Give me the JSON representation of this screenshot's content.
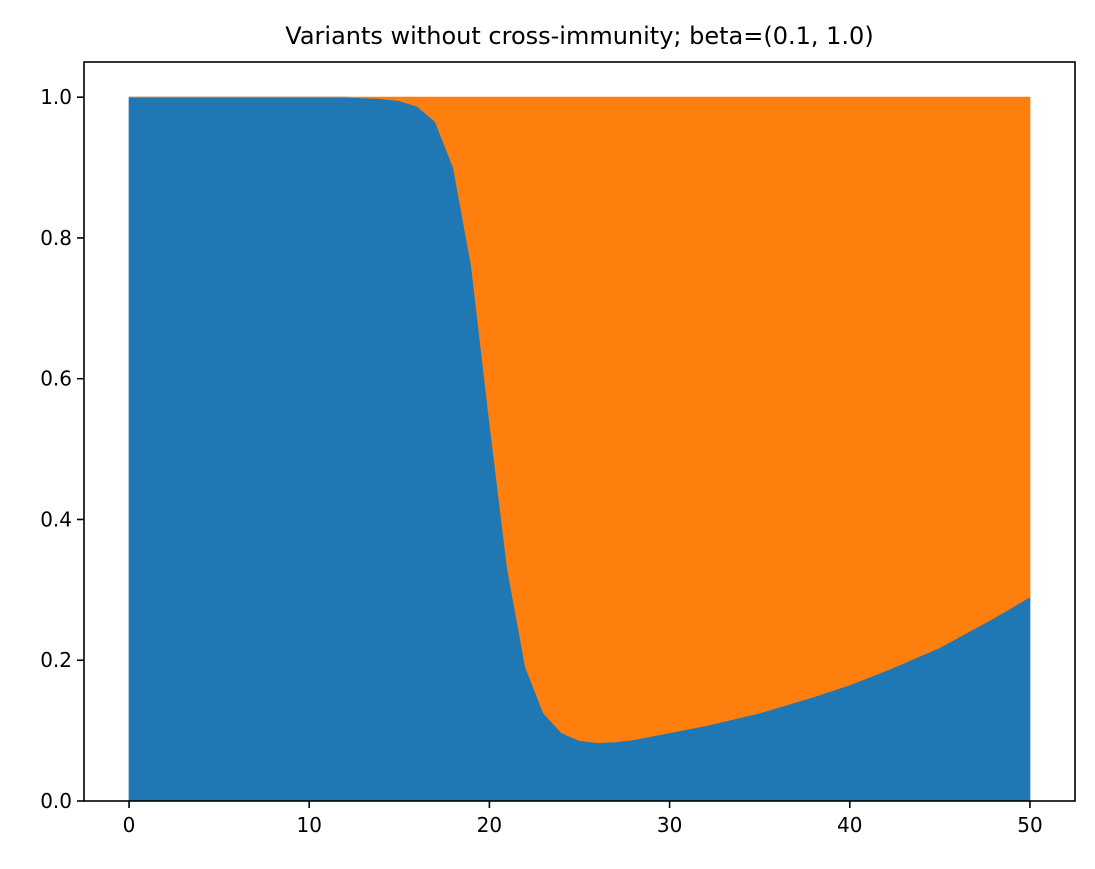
{
  "chart_data": {
    "type": "area",
    "stacked": true,
    "normalized": true,
    "title": "Variants without cross-immunity; beta=(0.1, 1.0)",
    "xlabel": "",
    "ylabel": "",
    "xlim": [
      -2.5,
      52.5
    ],
    "ylim": [
      0.0,
      1.05
    ],
    "xticks": [
      0,
      10,
      20,
      30,
      40,
      50
    ],
    "xtick_labels": [
      "0",
      "10",
      "20",
      "30",
      "40",
      "50"
    ],
    "yticks": [
      0.0,
      0.2,
      0.4,
      0.6,
      0.8,
      1.0
    ],
    "ytick_labels": [
      "0.0",
      "0.2",
      "0.4",
      "0.6",
      "0.8",
      "1.0"
    ],
    "grid": false,
    "legend": "none",
    "x": [
      0,
      5,
      10,
      12,
      14,
      15,
      16,
      17,
      18,
      19,
      20,
      21,
      22,
      23,
      24,
      25,
      26,
      27,
      28,
      30,
      32,
      35,
      38,
      40,
      42,
      45,
      48,
      50
    ],
    "series": [
      {
        "color": "#1f77b4",
        "values": [
          1.0,
          1.0,
          1.0,
          1.0,
          0.998,
          0.995,
          0.987,
          0.965,
          0.9,
          0.76,
          0.54,
          0.33,
          0.19,
          0.125,
          0.097,
          0.086,
          0.083,
          0.084,
          0.087,
          0.097,
          0.107,
          0.125,
          0.148,
          0.165,
          0.185,
          0.218,
          0.26,
          0.29
        ]
      },
      {
        "color": "#ff7f0e",
        "values": [
          0.0,
          0.0,
          0.0,
          0.0,
          0.002,
          0.005,
          0.013,
          0.035,
          0.1,
          0.24,
          0.46,
          0.67,
          0.81,
          0.875,
          0.903,
          0.914,
          0.917,
          0.916,
          0.913,
          0.903,
          0.893,
          0.875,
          0.852,
          0.835,
          0.815,
          0.782,
          0.74,
          0.71
        ]
      }
    ]
  }
}
